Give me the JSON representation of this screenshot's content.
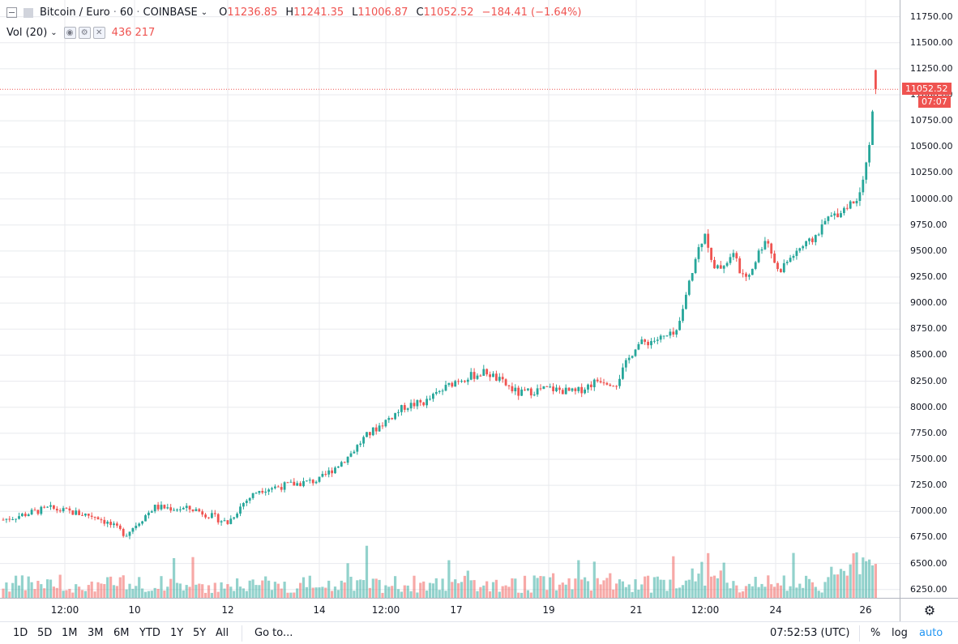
{
  "header": {
    "symbol": "Bitcoin / Euro",
    "interval": "60",
    "exchange": "COINBASE",
    "open_key": "O",
    "open": "11236.85",
    "high_key": "H",
    "high": "11241.35",
    "low_key": "L",
    "low": "11006.87",
    "close_key": "C",
    "close": "11052.52",
    "change": "−184.41 (−1.64%)"
  },
  "volume_legend": {
    "label": "Vol (20)",
    "value1": "436",
    "value2": "217"
  },
  "price_axis": {
    "ticks": [
      "11750.00",
      "11500.00",
      "11250.00",
      "11000.00",
      "10750.00",
      "10500.00",
      "10250.00",
      "10000.00",
      "9750.00",
      "9500.00",
      "9250.00",
      "9000.00",
      "8750.00",
      "8500.00",
      "8250.00",
      "8000.00",
      "7750.00",
      "7500.00",
      "7250.00",
      "7000.00",
      "6750.00",
      "6500.00",
      "6250.00"
    ],
    "last_price": "11052.52",
    "countdown": "07:07"
  },
  "time_axis": {
    "ticks": [
      "12:00",
      "10",
      "12",
      "14",
      "12:00",
      "17",
      "19",
      "21",
      "12:00",
      "24",
      "26"
    ]
  },
  "bottom_bar": {
    "ranges": [
      "1D",
      "5D",
      "1M",
      "3M",
      "6M",
      "YTD",
      "1Y",
      "5Y",
      "All"
    ],
    "goto": "Go to...",
    "clock": "07:52:53 (UTC)",
    "percent": "%",
    "log": "log",
    "auto": "auto"
  },
  "colors": {
    "up": "#26a69a",
    "down": "#ef5350",
    "grid": "#e8eaee",
    "accent": "#2196f3"
  },
  "chart_data": {
    "type": "candlestick",
    "instrument": "Bitcoin / Euro",
    "interval": "60",
    "y_range": [
      6170,
      11910
    ],
    "last_close": 11052.52,
    "path_anchors": [
      {
        "x": "8 (start)",
        "price": 6920
      },
      {
        "x": "9",
        "price": 7030
      },
      {
        "x": "9 12:00",
        "price": 6950
      },
      {
        "x": "10",
        "price": 6780
      },
      {
        "x": "10 06:00",
        "price": 7040
      },
      {
        "x": "11",
        "price": 7020
      },
      {
        "x": "12",
        "price": 6890
      },
      {
        "x": "12 12:00",
        "price": 7080
      },
      {
        "x": "13",
        "price": 7210
      },
      {
        "x": "14",
        "price": 7300
      },
      {
        "x": "14 12:00",
        "price": 7530
      },
      {
        "x": "15",
        "price": 7710
      },
      {
        "x": "15 12:00",
        "price": 7870
      },
      {
        "x": "16",
        "price": 8010
      },
      {
        "x": "16 12:00",
        "price": 8050
      },
      {
        "x": "17",
        "price": 8260
      },
      {
        "x": "17 12:00",
        "price": 8340
      },
      {
        "x": "18",
        "price": 8130
      },
      {
        "x": "18 12:00",
        "price": 8160
      },
      {
        "x": "19",
        "price": 8180
      },
      {
        "x": "19 12:00",
        "price": 8140
      },
      {
        "x": "20",
        "price": 8270
      },
      {
        "x": "20 12:00",
        "price": 8230
      },
      {
        "x": "21",
        "price": 8600
      },
      {
        "x": "21 12:00",
        "price": 8700
      },
      {
        "x": "21 18:00",
        "price": 9480
      },
      {
        "x": "22",
        "price": 9700
      },
      {
        "x": "22 06:00",
        "price": 9300
      },
      {
        "x": "22 12:00",
        "price": 9450
      },
      {
        "x": "23",
        "price": 9200
      },
      {
        "x": "23 12:00",
        "price": 9640
      },
      {
        "x": "23 18:00",
        "price": 9300
      },
      {
        "x": "24",
        "price": 9520
      },
      {
        "x": "24 12:00",
        "price": 9580
      },
      {
        "x": "25",
        "price": 9800
      },
      {
        "x": "25 12:00",
        "price": 10000
      },
      {
        "x": "26",
        "price": 10470
      },
      {
        "x": "26 06:00",
        "price": 11236.85
      },
      {
        "x": "26 07:00",
        "price": 11052.52
      }
    ],
    "volume_max_visible": 1436
  }
}
